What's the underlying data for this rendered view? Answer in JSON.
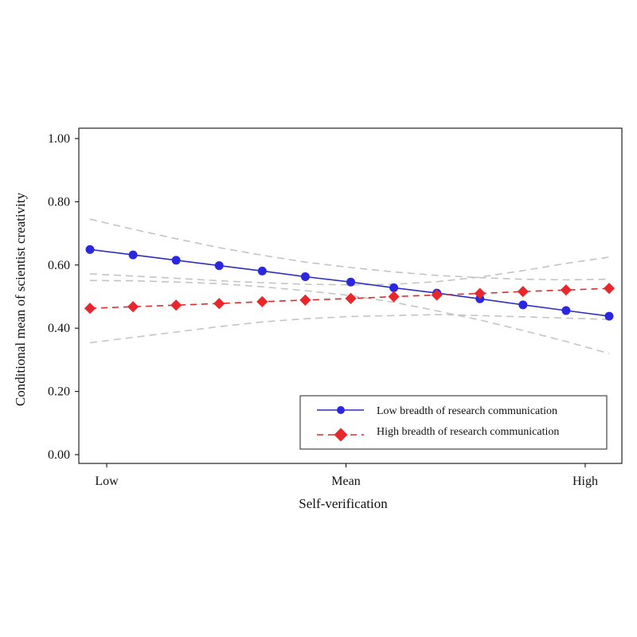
{
  "chart_data": {
    "type": "line",
    "xlabel": "Self-verification",
    "ylabel": "Conditional mean of scientist creativity",
    "x_tick_labels": [
      "Low",
      "Mean",
      "High"
    ],
    "y_tick_labels": [
      "0.00",
      "0.20",
      "0.40",
      "0.60",
      "0.80",
      "1.00"
    ],
    "ylim": [
      0,
      1
    ],
    "xlim": [
      -1.07,
      1.12
    ],
    "grid": false,
    "legend_position": "bottom-right",
    "x": [
      -1.07,
      -0.89,
      -0.71,
      -0.53,
      -0.35,
      -0.17,
      0.02,
      0.2,
      0.38,
      0.56,
      0.74,
      0.92,
      1.1
    ],
    "series": [
      {
        "name": "Low breadth of research communication",
        "color": "#2b2fc2",
        "marker_color": "#2a27e0",
        "line_style": "solid",
        "marker": "circle",
        "values": [
          0.649,
          0.632,
          0.615,
          0.598,
          0.581,
          0.563,
          0.546,
          0.528,
          0.511,
          0.493,
          0.474,
          0.456,
          0.438
        ],
        "ci_upper": [
          0.745,
          0.713,
          0.683,
          0.655,
          0.631,
          0.609,
          0.592,
          0.578,
          0.567,
          0.56,
          0.555,
          0.553,
          0.555
        ],
        "ci_lower": [
          0.551,
          0.55,
          0.546,
          0.541,
          0.531,
          0.519,
          0.503,
          0.482,
          0.455,
          0.426,
          0.393,
          0.358,
          0.32
        ]
      },
      {
        "name": "High breadth of research communication",
        "color": "#e02a2a",
        "marker_color": "#e8262b",
        "line_style": "dashed",
        "marker": "diamond",
        "values": [
          0.463,
          0.468,
          0.473,
          0.478,
          0.484,
          0.489,
          0.494,
          0.5,
          0.505,
          0.51,
          0.516,
          0.521,
          0.526
        ],
        "ci_upper": [
          0.572,
          0.565,
          0.558,
          0.55,
          0.544,
          0.539,
          0.537,
          0.539,
          0.547,
          0.562,
          0.582,
          0.605,
          0.625
        ],
        "ci_lower": [
          0.354,
          0.371,
          0.388,
          0.405,
          0.42,
          0.43,
          0.437,
          0.44,
          0.443,
          0.44,
          0.436,
          0.432,
          0.428
        ]
      }
    ],
    "ci_color": "#c4c4c4"
  }
}
